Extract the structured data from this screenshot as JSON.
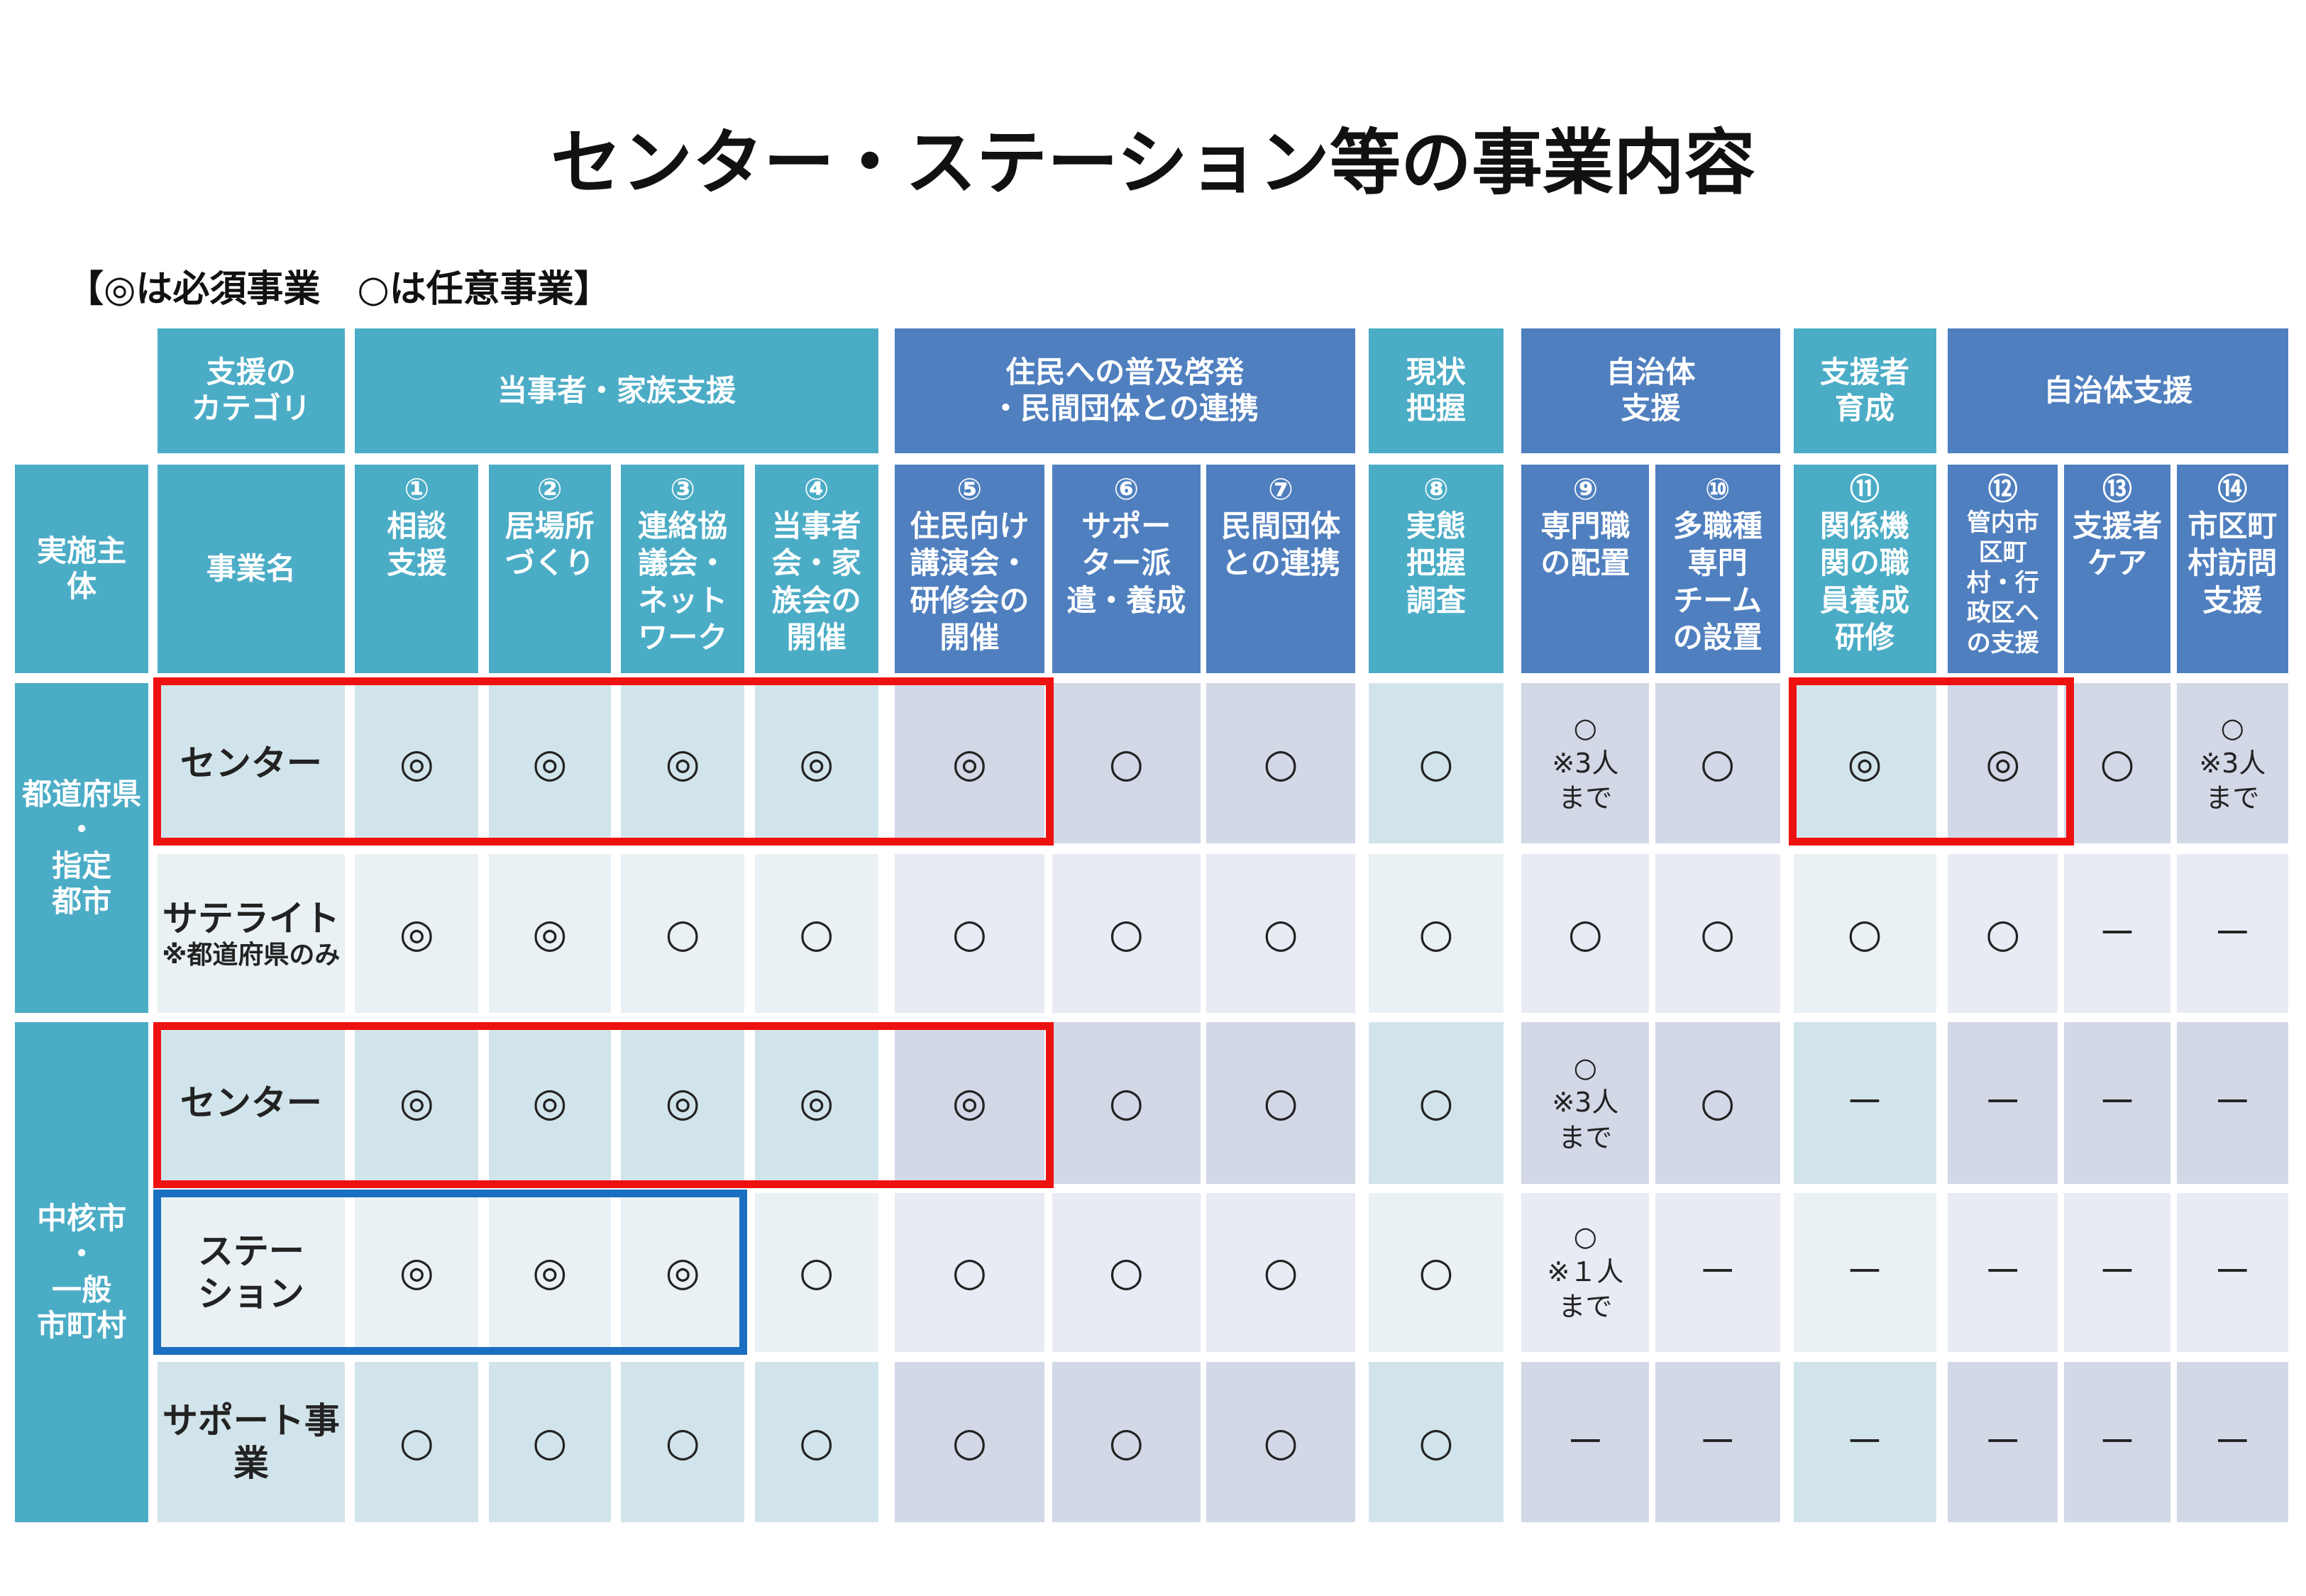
{
  "title": "センター・ステーション等の事業内容",
  "note": "【◎は必須事業　○は任意事業】",
  "category_header": [
    "支援の\nカテゴリ",
    "当事者・家族支援",
    "住民への普及啓発\n・民間団体との連携",
    "現状\n把握",
    "自治体\n支援",
    "支援者\n育成",
    "自治体支援"
  ],
  "row_header": {
    "actor": "実施主\n体",
    "name": "事業名"
  },
  "columns": [
    {
      "number": "①",
      "label": "相談\n支援"
    },
    {
      "number": "②",
      "label": "居場所\nづくり"
    },
    {
      "number": "③",
      "label": "連絡協\n議会・\nネット\nワーク"
    },
    {
      "number": "④",
      "label": "当事者\n会・家\n族会の\n開催"
    },
    {
      "number": "⑤",
      "label": "住民向け\n講演会・\n研修会の\n開催"
    },
    {
      "number": "⑥",
      "label": "サポー\nター派\n遣・養成"
    },
    {
      "number": "⑦",
      "label": "民間団体\nとの連携"
    },
    {
      "number": "⑧",
      "label": "実態\n把握\n調査"
    },
    {
      "number": "⑨",
      "label": "専門職\nの配置"
    },
    {
      "number": "⑩",
      "label": "多職種\n専門\nチーム\nの設置"
    },
    {
      "number": "⑪",
      "label": "関係機\n関の職\n員養成\n研修"
    },
    {
      "number": "⑫",
      "label": "管内市\n区町\n村・行\n政区へ\nの支援"
    },
    {
      "number": "⑬",
      "label": "支援者\nケア"
    },
    {
      "number": "⑭",
      "label": "市区町\n村訪問\n支援"
    }
  ],
  "groups": [
    "都道府県\n・\n指定\n都市",
    "中核市\n・\n一般\n市町村"
  ],
  "rows": [
    {
      "name": "センター",
      "cells": [
        "◎",
        "◎",
        "◎",
        "◎",
        "◎",
        "○",
        "○",
        "○",
        "○\n※3人\nまで",
        "○",
        "◎",
        "◎",
        "○",
        "○\n※3人\nまで"
      ]
    },
    {
      "name": "サテライト",
      "sub": "※都道府県のみ",
      "cells": [
        "◎",
        "◎",
        "○",
        "○",
        "○",
        "○",
        "○",
        "○",
        "○",
        "○",
        "○",
        "○",
        "－",
        "－"
      ]
    },
    {
      "name": "センター",
      "cells": [
        "◎",
        "◎",
        "◎",
        "◎",
        "◎",
        "○",
        "○",
        "○",
        "○\n※3人\nまで",
        "○",
        "－",
        "－",
        "－",
        "－"
      ]
    },
    {
      "name": "ステー\nション",
      "cells": [
        "◎",
        "◎",
        "◎",
        "○",
        "○",
        "○",
        "○",
        "○",
        "○\n※１人\nまで",
        "－",
        "－",
        "－",
        "－",
        "－"
      ]
    },
    {
      "name": "サポート事\n業",
      "cells": [
        "○",
        "○",
        "○",
        "○",
        "○",
        "○",
        "○",
        "○",
        "－",
        "－",
        "－",
        "－",
        "－",
        "－"
      ]
    }
  ]
}
